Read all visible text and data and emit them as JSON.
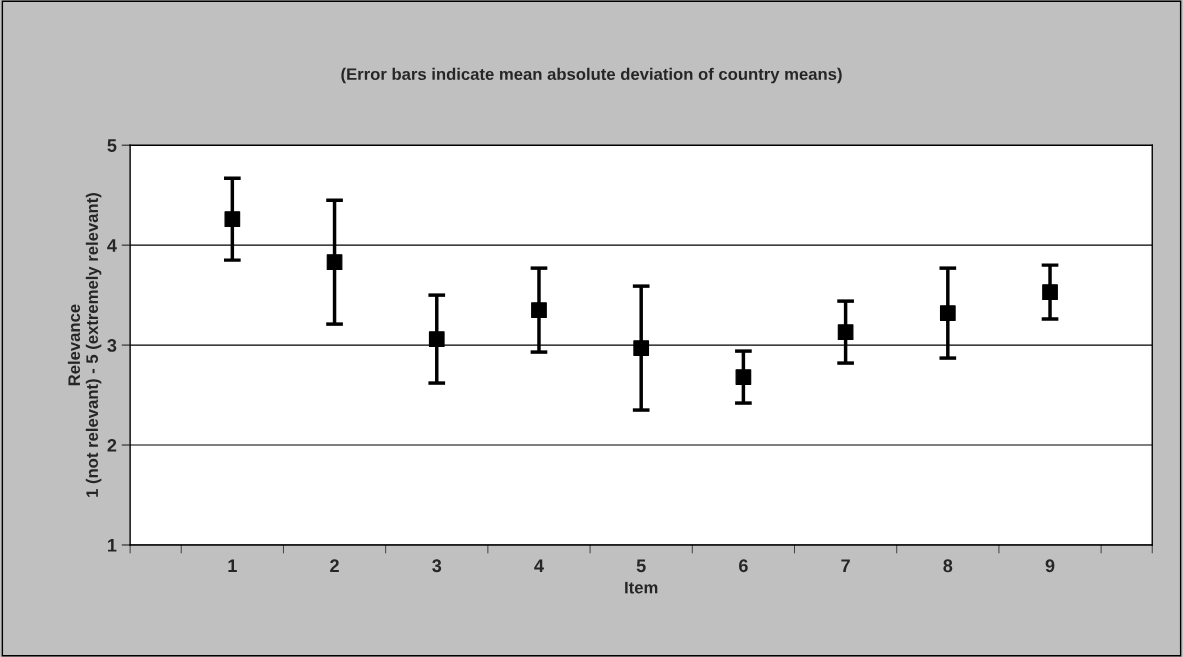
{
  "chart_data": {
    "type": "scatter",
    "title": "(Error bars indicate mean absolute deviation of country means)",
    "xlabel": "Item",
    "ylabel": "Relevance\n1 (not relevant) - 5 (extremely relevant)",
    "categories": [
      "1",
      "2",
      "3",
      "4",
      "5",
      "6",
      "7",
      "8",
      "9"
    ],
    "values": [
      4.26,
      3.83,
      3.06,
      3.35,
      2.97,
      2.68,
      3.13,
      3.32,
      3.53
    ],
    "errors": [
      0.41,
      0.62,
      0.44,
      0.42,
      0.62,
      0.26,
      0.31,
      0.45,
      0.27
    ],
    "color": "#000000",
    "marker": "square",
    "ylim": [
      1,
      5
    ],
    "yticks": [
      1,
      2,
      3,
      4,
      5
    ],
    "grid": "y",
    "legend": false
  }
}
